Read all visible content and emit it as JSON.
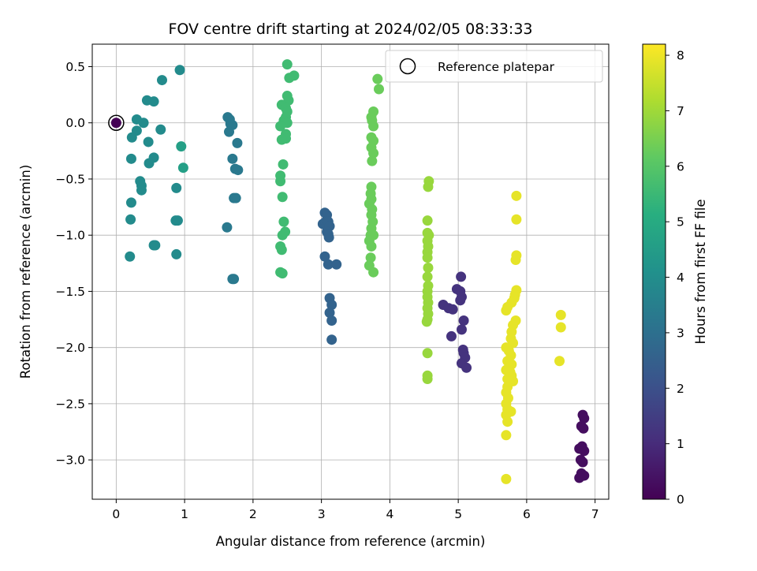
{
  "chart_data": {
    "type": "scatter",
    "title": "FOV centre drift starting at 2024/02/05 08:33:33",
    "xlabel": "Angular distance from reference (arcmin)",
    "ylabel": "Rotation from reference (arcmin)",
    "xlim": [
      -0.35,
      7.2
    ],
    "ylim": [
      -3.35,
      0.7
    ],
    "xticks": [
      0,
      1,
      2,
      3,
      4,
      5,
      6,
      7
    ],
    "yticks": [
      0.5,
      0.0,
      -0.5,
      -1.0,
      -1.5,
      -2.0,
      -2.5,
      -3.0
    ],
    "xtick_labels": [
      "0",
      "1",
      "2",
      "3",
      "4",
      "5",
      "6",
      "7"
    ],
    "ytick_labels": [
      "0.5",
      "0.0",
      "−0.5",
      "−1.0",
      "−1.5",
      "−2.0",
      "−2.5",
      "−3.0"
    ],
    "grid": true,
    "legend": {
      "position": "top-right",
      "entries": [
        "Reference platepar"
      ]
    },
    "colorbar": {
      "label": "Hours from first FF file",
      "range": [
        0,
        8.2
      ],
      "ticks": [
        0,
        1,
        2,
        3,
        4,
        5,
        6,
        7,
        8
      ],
      "tick_labels": [
        "0",
        "1",
        "2",
        "3",
        "4",
        "5",
        "6",
        "7",
        "8"
      ],
      "colormap": "viridis"
    },
    "reference_point": {
      "x": 0,
      "y": 0
    },
    "series": [
      {
        "hours": 0.3,
        "points": [
          [
            6.82,
            -2.6
          ],
          [
            6.84,
            -2.63
          ],
          [
            6.8,
            -2.7
          ],
          [
            6.83,
            -2.72
          ],
          [
            6.77,
            -2.9
          ],
          [
            6.81,
            -2.88
          ],
          [
            6.84,
            -2.92
          ],
          [
            6.79,
            -3.0
          ],
          [
            6.82,
            -3.02
          ],
          [
            6.8,
            -3.12
          ],
          [
            6.84,
            -3.14
          ],
          [
            6.77,
            -3.16
          ]
        ]
      },
      {
        "hours": 1.2,
        "points": [
          [
            4.78,
            -1.62
          ],
          [
            4.86,
            -1.65
          ],
          [
            4.92,
            -1.66
          ],
          [
            4.9,
            -1.9
          ],
          [
            4.98,
            -1.48
          ],
          [
            5.03,
            -1.5
          ],
          [
            5.05,
            -1.55
          ],
          [
            5.03,
            -1.58
          ],
          [
            5.04,
            -1.37
          ],
          [
            5.08,
            -1.76
          ],
          [
            5.05,
            -1.84
          ],
          [
            5.07,
            -2.02
          ],
          [
            5.08,
            -2.05
          ],
          [
            5.1,
            -2.09
          ],
          [
            5.05,
            -2.14
          ],
          [
            5.12,
            -2.18
          ]
        ]
      },
      {
        "hours": 2.6,
        "points": [
          [
            3.05,
            -0.8
          ],
          [
            3.08,
            -0.82
          ],
          [
            3.02,
            -0.9
          ],
          [
            3.06,
            -0.88
          ],
          [
            3.1,
            -0.88
          ],
          [
            3.12,
            -0.92
          ],
          [
            3.08,
            -0.97
          ],
          [
            3.11,
            -1.02
          ],
          [
            3.1,
            -0.99
          ],
          [
            3.05,
            -1.19
          ],
          [
            3.1,
            -1.26
          ],
          [
            3.22,
            -1.26
          ],
          [
            3.12,
            -1.56
          ],
          [
            3.15,
            -1.62
          ],
          [
            3.12,
            -1.69
          ],
          [
            3.15,
            -1.76
          ],
          [
            3.15,
            -1.93
          ]
        ]
      },
      {
        "hours": 3.3,
        "points": [
          [
            1.63,
            0.05
          ],
          [
            1.66,
            0.03
          ],
          [
            1.67,
            -0.01
          ],
          [
            1.7,
            -0.02
          ],
          [
            1.65,
            -0.08
          ],
          [
            1.77,
            -0.18
          ],
          [
            1.7,
            -0.32
          ],
          [
            1.74,
            -0.41
          ],
          [
            1.78,
            -0.42
          ],
          [
            1.72,
            -0.67
          ],
          [
            1.75,
            -0.67
          ],
          [
            1.62,
            -0.93
          ],
          [
            1.7,
            -1.39
          ],
          [
            1.72,
            -1.39
          ]
        ]
      },
      {
        "hours": 3.9,
        "points": [
          [
            0.67,
            0.38
          ],
          [
            0.93,
            0.47
          ],
          [
            0.45,
            0.2
          ],
          [
            0.55,
            0.19
          ],
          [
            0.3,
            0.03
          ],
          [
            0.4,
            0.0
          ],
          [
            0.3,
            -0.07
          ],
          [
            0.23,
            -0.13
          ],
          [
            0.47,
            -0.17
          ],
          [
            0.65,
            -0.06
          ],
          [
            0.22,
            -0.32
          ],
          [
            0.55,
            -0.31
          ],
          [
            0.48,
            -0.36
          ],
          [
            0.35,
            -0.52
          ],
          [
            0.37,
            -0.56
          ],
          [
            0.37,
            -0.6
          ],
          [
            0.22,
            -0.71
          ],
          [
            0.21,
            -0.86
          ],
          [
            0.88,
            -0.58
          ],
          [
            0.87,
            -0.87
          ],
          [
            0.9,
            -0.87
          ],
          [
            0.55,
            -1.09
          ],
          [
            0.57,
            -1.09
          ],
          [
            0.88,
            -1.17
          ],
          [
            0.2,
            -1.19
          ]
        ]
      },
      {
        "hours": 4.6,
        "points": [
          [
            0.95,
            -0.21
          ],
          [
            0.98,
            -0.4
          ]
        ]
      },
      {
        "hours": 5.6,
        "points": [
          [
            2.5,
            0.52
          ],
          [
            2.6,
            0.42
          ],
          [
            2.53,
            0.4
          ],
          [
            2.5,
            0.24
          ],
          [
            2.52,
            0.2
          ],
          [
            2.42,
            0.16
          ],
          [
            2.48,
            0.13
          ],
          [
            2.5,
            0.1
          ],
          [
            2.48,
            0.05
          ],
          [
            2.45,
            0.02
          ],
          [
            2.5,
            0.0
          ],
          [
            2.4,
            -0.03
          ],
          [
            2.48,
            -0.1
          ],
          [
            2.48,
            -0.14
          ],
          [
            2.42,
            -0.15
          ],
          [
            2.44,
            -0.37
          ],
          [
            2.4,
            -0.47
          ],
          [
            2.4,
            -0.52
          ],
          [
            2.43,
            -0.66
          ],
          [
            2.45,
            -0.88
          ],
          [
            2.43,
            -1.0
          ],
          [
            2.47,
            -0.97
          ],
          [
            2.4,
            -1.1
          ],
          [
            2.42,
            -1.13
          ],
          [
            2.4,
            -1.33
          ],
          [
            2.43,
            -1.34
          ]
        ]
      },
      {
        "hours": 6.3,
        "points": [
          [
            3.82,
            0.39
          ],
          [
            3.84,
            0.3
          ],
          [
            3.76,
            0.1
          ],
          [
            3.73,
            0.05
          ],
          [
            3.74,
            0.02
          ],
          [
            3.76,
            -0.03
          ],
          [
            3.73,
            -0.13
          ],
          [
            3.76,
            -0.16
          ],
          [
            3.73,
            -0.22
          ],
          [
            3.76,
            -0.27
          ],
          [
            3.74,
            -0.34
          ],
          [
            3.73,
            -0.57
          ],
          [
            3.72,
            -0.63
          ],
          [
            3.73,
            -0.68
          ],
          [
            3.7,
            -0.72
          ],
          [
            3.74,
            -0.77
          ],
          [
            3.73,
            -0.82
          ],
          [
            3.75,
            -0.88
          ],
          [
            3.73,
            -0.94
          ],
          [
            3.72,
            -1.0
          ],
          [
            3.76,
            -1.0
          ],
          [
            3.7,
            -1.05
          ],
          [
            3.73,
            -1.1
          ],
          [
            3.72,
            -1.2
          ],
          [
            3.7,
            -1.27
          ],
          [
            3.76,
            -1.33
          ]
        ]
      },
      {
        "hours": 6.9,
        "points": [
          [
            4.57,
            -0.52
          ],
          [
            4.56,
            -0.57
          ],
          [
            4.55,
            -0.87
          ],
          [
            4.55,
            -0.98
          ],
          [
            4.57,
            -1.0
          ],
          [
            4.55,
            -1.05
          ],
          [
            4.56,
            -1.1
          ],
          [
            4.55,
            -1.15
          ],
          [
            4.55,
            -1.2
          ],
          [
            4.56,
            -1.29
          ],
          [
            4.55,
            -1.37
          ],
          [
            4.56,
            -1.45
          ],
          [
            4.55,
            -1.5
          ],
          [
            4.55,
            -1.55
          ],
          [
            4.56,
            -1.6
          ],
          [
            4.55,
            -1.65
          ],
          [
            4.56,
            -1.7
          ],
          [
            4.55,
            -1.75
          ],
          [
            4.54,
            -1.77
          ],
          [
            4.55,
            -2.05
          ],
          [
            4.55,
            -2.25
          ],
          [
            4.55,
            -2.28
          ]
        ]
      },
      {
        "hours": 7.9,
        "points": [
          [
            5.85,
            -0.65
          ],
          [
            5.85,
            -0.86
          ],
          [
            5.85,
            -1.18
          ],
          [
            5.84,
            -1.22
          ],
          [
            5.85,
            -1.49
          ],
          [
            5.83,
            -1.53
          ],
          [
            5.82,
            -1.56
          ],
          [
            5.78,
            -1.6
          ],
          [
            5.72,
            -1.64
          ],
          [
            5.7,
            -1.67
          ],
          [
            5.84,
            -1.76
          ],
          [
            5.8,
            -1.8
          ],
          [
            5.78,
            -1.86
          ],
          [
            5.77,
            -1.92
          ],
          [
            5.8,
            -1.96
          ],
          [
            5.7,
            -2.0
          ],
          [
            5.74,
            -2.03
          ],
          [
            5.77,
            -2.07
          ],
          [
            5.72,
            -2.12
          ],
          [
            5.78,
            -2.15
          ],
          [
            5.7,
            -2.2
          ],
          [
            5.76,
            -2.22
          ],
          [
            5.78,
            -2.25
          ],
          [
            5.72,
            -2.28
          ],
          [
            5.8,
            -2.3
          ],
          [
            5.72,
            -2.35
          ],
          [
            5.7,
            -2.4
          ],
          [
            5.73,
            -2.45
          ],
          [
            5.7,
            -2.5
          ],
          [
            5.72,
            -2.55
          ],
          [
            5.77,
            -2.57
          ],
          [
            5.7,
            -2.6
          ],
          [
            5.72,
            -2.66
          ],
          [
            5.7,
            -2.78
          ],
          [
            5.7,
            -3.17
          ],
          [
            6.5,
            -1.71
          ],
          [
            6.5,
            -1.82
          ],
          [
            6.48,
            -2.12
          ]
        ]
      }
    ]
  }
}
